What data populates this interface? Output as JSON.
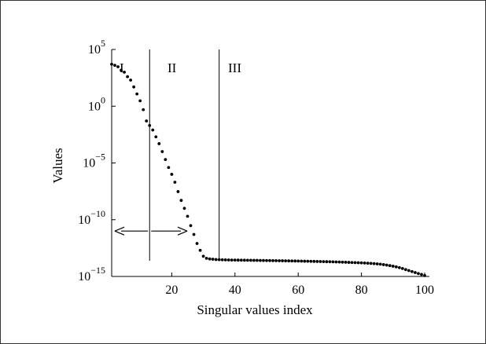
{
  "chart_data": {
    "type": "scatter",
    "xlabel": "Singular values index",
    "ylabel": "Values",
    "xlim": [
      1,
      100
    ],
    "ylim": [
      1e-15,
      100000.0
    ],
    "yscale": "log",
    "x_ticks": [
      20,
      40,
      60,
      80,
      100
    ],
    "x_tick_labels": [
      "20",
      "40",
      "60",
      "80",
      "100"
    ],
    "y_ticks": [
      {
        "value": 100000.0,
        "base": "10",
        "exp": "5"
      },
      {
        "value": 1,
        "base": "10",
        "exp": "0"
      },
      {
        "value": 1e-05,
        "base": "10",
        "exp": "−5"
      },
      {
        "value": 1e-10,
        "base": "10",
        "exp": "−10"
      },
      {
        "value": 1e-15,
        "base": "10",
        "exp": "−15"
      }
    ],
    "grid": false,
    "legend": "none",
    "marker_color": "#000000",
    "regions": [
      {
        "label": "I",
        "x_start": 1,
        "x_end": 13
      },
      {
        "label": "II",
        "x_start": 13,
        "x_end": 35
      },
      {
        "label": "III",
        "x_start": 35,
        "x_end": 100
      }
    ],
    "boundaries": [
      13,
      35
    ],
    "arrow_annotation": {
      "x_center": 13,
      "x_left": 1,
      "x_right": 25,
      "y": 1e-11,
      "direction": "both"
    },
    "series": [
      {
        "x": [
          1,
          2,
          3,
          4,
          5,
          6,
          7,
          8,
          9,
          10,
          11,
          12,
          13,
          14,
          15,
          16,
          17,
          18,
          19,
          20,
          21,
          22,
          23,
          24,
          25,
          26,
          27,
          28,
          29,
          30,
          31,
          32,
          33,
          34,
          35,
          36,
          37,
          38,
          39,
          40,
          41,
          42,
          43,
          44,
          45,
          46,
          47,
          48,
          49,
          50,
          51,
          52,
          53,
          54,
          55,
          56,
          57,
          58,
          59,
          60,
          61,
          62,
          63,
          64,
          65,
          66,
          67,
          68,
          69,
          70,
          71,
          72,
          73,
          74,
          75,
          76,
          77,
          78,
          79,
          80,
          81,
          82,
          83,
          84,
          85,
          86,
          87,
          88,
          89,
          90,
          91,
          92,
          93,
          94,
          95,
          96,
          97,
          98,
          99,
          100
        ],
        "y": [
          5000.0,
          4000.0,
          3000.0,
          1500.0,
          1000.0,
          400,
          200,
          50,
          12,
          3,
          0.5,
          0.05,
          0.02,
          0.008,
          0.002,
          0.0005,
          0.0001,
          2e-05,
          4e-06,
          1e-06,
          2e-07,
          3e-08,
          5e-09,
          1e-09,
          2e-10,
          3e-11,
          5e-12,
          8e-13,
          2e-13,
          6e-14,
          4e-14,
          3.5e-14,
          3.3e-14,
          3.1e-14,
          3e-14,
          2.95e-14,
          2.9e-14,
          2.85e-14,
          2.8e-14,
          2.78e-14,
          2.75e-14,
          2.72e-14,
          2.7e-14,
          2.68e-14,
          2.65e-14,
          2.62e-14,
          2.6e-14,
          2.58e-14,
          2.55e-14,
          2.52e-14,
          2.5e-14,
          2.48e-14,
          2.45e-14,
          2.42e-14,
          2.4e-14,
          2.38e-14,
          2.35e-14,
          2.32e-14,
          2.3e-14,
          2.27e-14,
          2.24e-14,
          2.21e-14,
          2.18e-14,
          2.15e-14,
          2.12e-14,
          2.09e-14,
          2.06e-14,
          2.03e-14,
          2e-14,
          1.97e-14,
          1.94e-14,
          1.9e-14,
          1.86e-14,
          1.82e-14,
          1.78e-14,
          1.74e-14,
          1.7e-14,
          1.66e-14,
          1.62e-14,
          1.58e-14,
          1.53e-14,
          1.48e-14,
          1.42e-14,
          1.35e-14,
          1.28e-14,
          1.2e-14,
          1.1e-14,
          1e-14,
          9e-15,
          8e-15,
          7e-15,
          6e-15,
          5e-15,
          4e-15,
          3.3e-15,
          2.7e-15,
          2.2e-15,
          1.8e-15,
          1.5e-15,
          1.2e-15
        ]
      }
    ]
  }
}
